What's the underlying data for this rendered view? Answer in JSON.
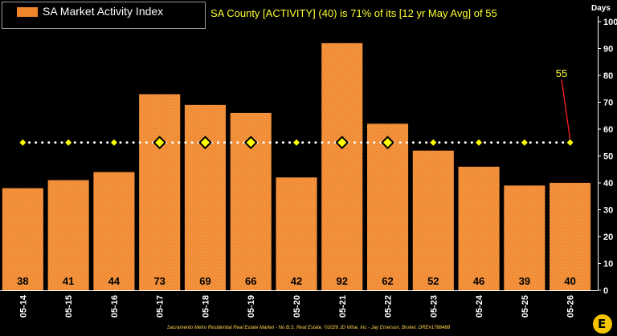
{
  "legend": {
    "label": "SA Market Activity Index"
  },
  "subtitle": "SA County [ACTIVITY] (40) is 71% of its [12 yr May Avg] of 55",
  "y_unit": "Days",
  "footer": "Sacramento Metro Residential Real Estate Market - No B.S. Real Estate, ©2026 JD Wise, Inc - Jay Emerson, Broker, DRE#1788488",
  "logo_text": "E",
  "avg_callout": "55",
  "colors": {
    "bar": "#f0862b",
    "avg_marker": "#ffff00",
    "avg_line": "#ffffff",
    "callout": "#ffff33",
    "callout_line": "#ff2020"
  },
  "chart_data": {
    "type": "bar",
    "categories": [
      "05-14",
      "05-15",
      "05-16",
      "05-17",
      "05-18",
      "05-19",
      "05-20",
      "05-21",
      "05-22",
      "05-23",
      "05-24",
      "05-25",
      "05-26"
    ],
    "series": [
      {
        "name": "SA Market Activity Index",
        "values": [
          38,
          41,
          44,
          73,
          69,
          66,
          42,
          92,
          62,
          52,
          46,
          39,
          40
        ]
      }
    ],
    "average": 55,
    "highlighted_categories": [
      "05-17",
      "05-18",
      "05-19",
      "05-21",
      "05-22"
    ],
    "ylabel": "Days",
    "ylim": [
      0,
      100
    ],
    "yticks": [
      0,
      10,
      20,
      30,
      40,
      50,
      60,
      70,
      80,
      90,
      100
    ],
    "legend_position": "top-left",
    "grid": false
  }
}
